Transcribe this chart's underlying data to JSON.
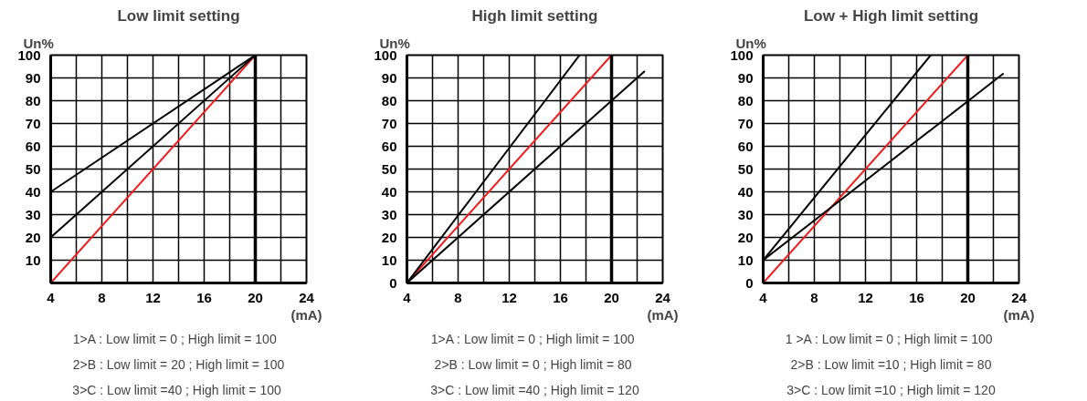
{
  "chart_data": [
    {
      "type": "line",
      "title": "Low limit setting",
      "xlabel": "(mA)",
      "ylabel": "Un%",
      "xlim": [
        4,
        24
      ],
      "ylim": [
        0,
        100
      ],
      "xticks": [
        4,
        {
          "value": 6,
          "label": null
        },
        8,
        {
          "value": 10,
          "label": null
        },
        12,
        {
          "value": 14,
          "label": null
        },
        16,
        {
          "value": 18,
          "label": null
        },
        20,
        {
          "value": 22,
          "label": null
        },
        24
      ],
      "yticks": [
        {
          "value": 0,
          "label": null
        },
        10,
        20,
        30,
        40,
        50,
        60,
        70,
        80,
        90,
        100
      ],
      "grid": true,
      "tick_labels": true,
      "series": [
        {
          "color": "#ee1c1c",
          "x": [
            4,
            20
          ],
          "values": [
            0,
            100
          ]
        },
        {
          "color": "#000000",
          "x": [
            4,
            20
          ],
          "values": [
            20,
            100
          ]
        },
        {
          "color": "#000000",
          "x": [
            4,
            20
          ],
          "values": [
            40,
            100
          ]
        }
      ],
      "ref_lines": [
        {
          "axis": "x",
          "value": 20,
          "color": "#000000"
        }
      ],
      "annotations": [
        "1>A : Low limit = 0   ; High limit = 100",
        "2>B : Low limit = 20 ; High limit = 100",
        "3>C : Low limit =40  ; High limit = 100"
      ]
    },
    {
      "type": "line",
      "title": "High limit setting",
      "xlabel": "(mA)",
      "ylabel": "Un%",
      "xlim": [
        4,
        24
      ],
      "ylim": [
        0,
        100
      ],
      "xticks": [
        4,
        {
          "value": 6,
          "label": null
        },
        8,
        {
          "value": 10,
          "label": null
        },
        12,
        {
          "value": 14,
          "label": null
        },
        16,
        {
          "value": 18,
          "label": null
        },
        20,
        {
          "value": 22,
          "label": null
        },
        24
      ],
      "yticks": [
        0,
        10,
        20,
        30,
        40,
        50,
        60,
        70,
        80,
        90,
        100
      ],
      "grid": true,
      "series": [
        {
          "color": "#ee1c1c",
          "x": [
            4,
            20
          ],
          "values": [
            0,
            100
          ]
        },
        {
          "color": "#000000",
          "x": [
            4,
            17.5
          ],
          "values": [
            0,
            100
          ]
        },
        {
          "color": "#000000",
          "x": [
            4,
            22.6
          ],
          "values": [
            0,
            93
          ]
        }
      ],
      "ref_lines": [
        {
          "axis": "x",
          "value": 20,
          "color": "#000000"
        }
      ],
      "annotations": [
        "1>A : Low limit = 0  ; High limit = 100",
        "2>B : Low limit = 0  ; High limit = 80",
        "3>C : Low limit =40 ; High limit = 120"
      ]
    },
    {
      "type": "line",
      "title": "Low + High limit setting",
      "xlabel": "(mA)",
      "ylabel": "Un%",
      "xlim": [
        4,
        24
      ],
      "ylim": [
        0,
        100
      ],
      "xticks": [
        4,
        {
          "value": 6,
          "label": null
        },
        8,
        {
          "value": 10,
          "label": null
        },
        12,
        {
          "value": 14,
          "label": null
        },
        16,
        {
          "value": 18,
          "label": null
        },
        20,
        {
          "value": 22,
          "label": null
        },
        24
      ],
      "yticks": [
        0,
        10,
        20,
        30,
        40,
        50,
        60,
        70,
        80,
        90,
        100
      ],
      "grid": true,
      "series": [
        {
          "color": "#ee1c1c",
          "x": [
            4,
            20
          ],
          "values": [
            0,
            100
          ]
        },
        {
          "color": "#000000",
          "x": [
            4,
            17.1
          ],
          "values": [
            10,
            100
          ]
        },
        {
          "color": "#000000",
          "x": [
            4,
            22.8
          ],
          "values": [
            10,
            92
          ]
        }
      ],
      "ref_lines": [
        {
          "axis": "x",
          "value": 20,
          "color": "#000000"
        }
      ],
      "annotations": [
        "1 >A : Low limit = 0  ; High limit = 100",
        "2>B : Low limit =10 ; High limit = 80",
        "3>C : Low limit =10 ; High limit = 120"
      ]
    }
  ]
}
